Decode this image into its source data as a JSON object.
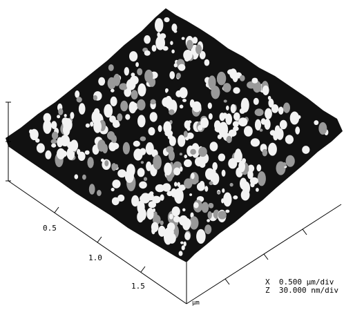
{
  "axis": {
    "labels": [
      "0.5",
      "1.0",
      "1.5"
    ],
    "unit": "µm"
  },
  "scale": {
    "x": "X  0.500 µm/div",
    "z": "Z  30.000 nm/div"
  }
}
